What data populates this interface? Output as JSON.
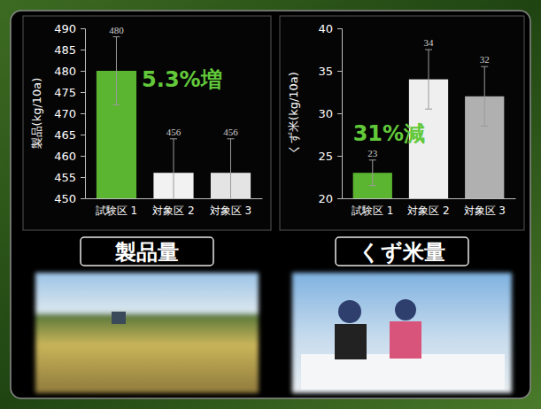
{
  "chart_data": [
    {
      "type": "bar",
      "title": "製品量",
      "ylabel": "製品(kg/10a)",
      "categories": [
        "試験区 1",
        "対象区 2",
        "対象区 3"
      ],
      "values": [
        480,
        456,
        456
      ],
      "errors": [
        8,
        8,
        8
      ],
      "colors": [
        "#5cb531",
        "#f2f2f2",
        "#e4e4e4"
      ],
      "ylim": [
        450,
        490
      ],
      "yticks": [
        450,
        455,
        460,
        465,
        470,
        475,
        480,
        485,
        490
      ],
      "data_labels": true,
      "annotations": [
        "5.3%増"
      ]
    },
    {
      "type": "bar",
      "title": "くず米量",
      "ylabel": "くず米(kg/10a)",
      "categories": [
        "試験区 1",
        "対象区 2",
        "対象区 3"
      ],
      "values": [
        23,
        34,
        32
      ],
      "errors": [
        1.5,
        3.5,
        3.5
      ],
      "colors": [
        "#5cb531",
        "#efefef",
        "#b0b0b0"
      ],
      "ylim": [
        20,
        40
      ],
      "yticks": [
        20,
        25,
        30,
        35,
        40
      ],
      "data_labels": true,
      "annotations": [
        "31%減"
      ]
    }
  ]
}
